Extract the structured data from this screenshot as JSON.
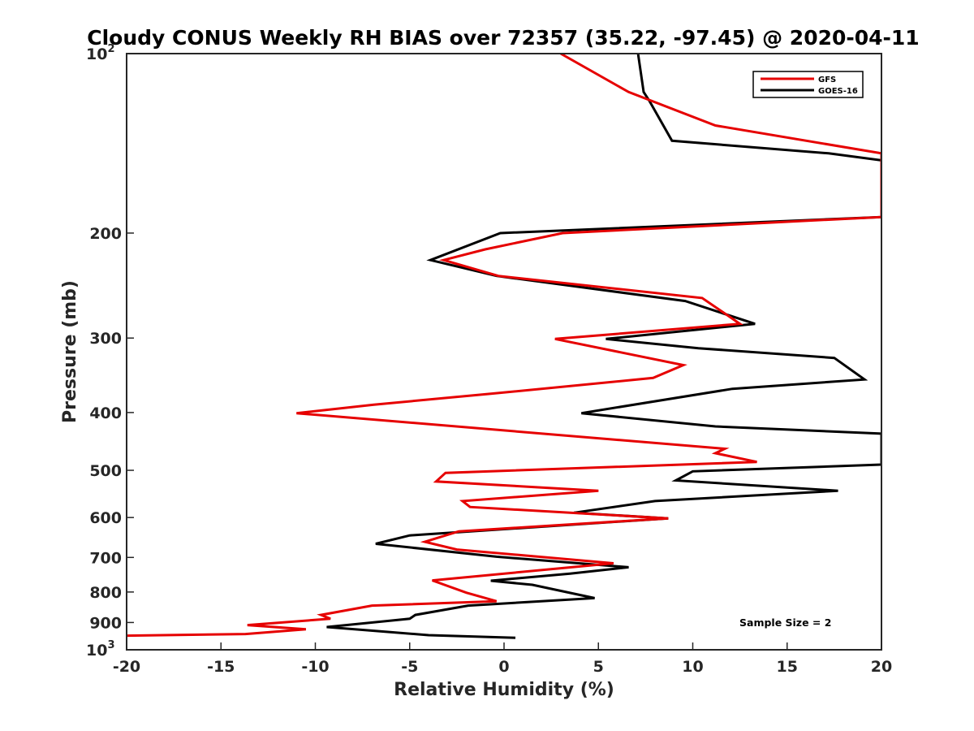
{
  "chart_data": {
    "type": "line",
    "title": "Cloudy CONUS Weekly RH BIAS over 72357 (35.22, -97.45) @ 2020-04-11",
    "xlabel": "Relative Humidity (%)",
    "ylabel": "Pressure (mb)",
    "xlim": [
      -20,
      20
    ],
    "ylim": [
      100,
      1000
    ],
    "y_scale": "log",
    "y_reversed": true,
    "x_ticks": [
      -20,
      -15,
      -10,
      -5,
      0,
      5,
      10,
      15,
      20
    ],
    "x_tick_labels": [
      "-20",
      "-15",
      "-10",
      "-5",
      "0",
      "5",
      "10",
      "15",
      "20"
    ],
    "y_ticks": [
      {
        "value": 100,
        "base": "10",
        "exp": "2"
      },
      {
        "value": 200,
        "label": "200"
      },
      {
        "value": 300,
        "label": "300"
      },
      {
        "value": 400,
        "label": "400"
      },
      {
        "value": 500,
        "label": "500"
      },
      {
        "value": 600,
        "label": "600"
      },
      {
        "value": 700,
        "label": "700"
      },
      {
        "value": 800,
        "label": "800"
      },
      {
        "value": 900,
        "label": "900"
      },
      {
        "value": 1000,
        "base": "10",
        "exp": "3"
      }
    ],
    "grid": false,
    "legend_position": "top-right",
    "annotation": "Sample Size = 2",
    "series": [
      {
        "name": "GFS",
        "color": "#e60000",
        "points": [
          [
            3.0,
            100
          ],
          [
            6.6,
            116
          ],
          [
            11.2,
            132
          ],
          [
            20.0,
            147
          ],
          [
            20.0,
            188
          ],
          [
            3.1,
            200
          ],
          [
            -1.0,
            213
          ],
          [
            -3.2,
            222
          ],
          [
            -0.3,
            236
          ],
          [
            10.5,
            257
          ],
          [
            12.5,
            284
          ],
          [
            2.7,
            301
          ],
          [
            9.5,
            333
          ],
          [
            7.9,
            350
          ],
          [
            -0.7,
            372
          ],
          [
            -6.9,
            388
          ],
          [
            -11.0,
            401
          ],
          [
            11.7,
            460
          ],
          [
            11.2,
            468
          ],
          [
            13.4,
            484
          ],
          [
            -3.1,
            505
          ],
          [
            -3.6,
            522
          ],
          [
            5.0,
            541
          ],
          [
            -2.2,
            563
          ],
          [
            -1.8,
            576
          ],
          [
            8.7,
            602
          ],
          [
            -2.4,
            633
          ],
          [
            -4.2,
            659
          ],
          [
            -2.5,
            679
          ],
          [
            5.8,
            716
          ],
          [
            -3.8,
            765
          ],
          [
            -2.0,
            802
          ],
          [
            -0.4,
            829
          ],
          [
            -7.0,
            843
          ],
          [
            -9.7,
            874
          ],
          [
            -9.2,
            887
          ],
          [
            -13.6,
            909
          ],
          [
            -10.5,
            924
          ],
          [
            -13.7,
            941
          ],
          [
            -20.0,
            947
          ]
        ]
      },
      {
        "name": "GOES-16",
        "color": "#000000",
        "points": [
          [
            7.1,
            100
          ],
          [
            7.4,
            116
          ],
          [
            7.7,
            120
          ],
          [
            8.9,
            140
          ],
          [
            17.2,
            147
          ],
          [
            20.0,
            151
          ],
          [
            20.0,
            188
          ],
          [
            -0.2,
            200
          ],
          [
            -3.9,
            222
          ],
          [
            -0.4,
            236
          ],
          [
            9.6,
            260
          ],
          [
            13.3,
            284
          ],
          [
            5.4,
            301
          ],
          [
            10.3,
            312
          ],
          [
            17.5,
            324
          ],
          [
            19.1,
            352
          ],
          [
            12.1,
            365
          ],
          [
            4.1,
            401
          ],
          [
            11.2,
            422
          ],
          [
            20.0,
            434
          ],
          [
            20.0,
            489
          ],
          [
            10.0,
            502
          ],
          [
            9.1,
            520
          ],
          [
            17.7,
            541
          ],
          [
            8.0,
            563
          ],
          [
            3.7,
            589
          ],
          [
            8.7,
            602
          ],
          [
            -5.0,
            643
          ],
          [
            -6.8,
            664
          ],
          [
            -0.4,
            698
          ],
          [
            6.6,
            727
          ],
          [
            3.5,
            745
          ],
          [
            -0.7,
            766
          ],
          [
            1.5,
            778
          ],
          [
            4.8,
            819
          ],
          [
            -1.9,
            843
          ],
          [
            -4.7,
            874
          ],
          [
            -5.0,
            887
          ],
          [
            -9.4,
            916
          ],
          [
            -7.1,
            928
          ],
          [
            -4.0,
            945
          ],
          [
            0.6,
            955
          ]
        ]
      }
    ]
  }
}
